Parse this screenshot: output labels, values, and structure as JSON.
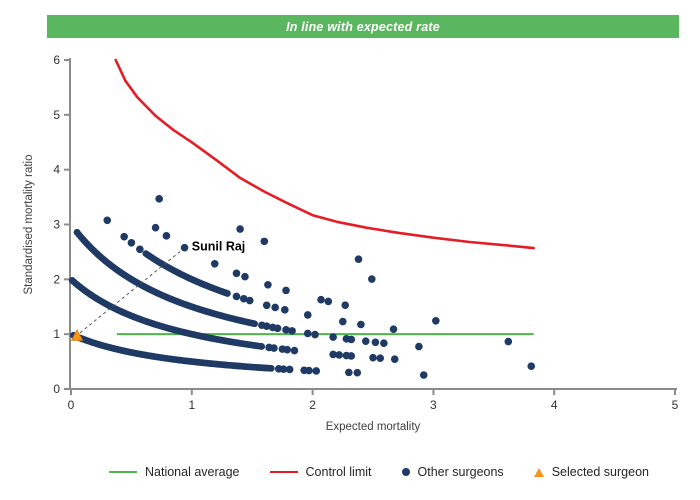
{
  "header": {
    "text": "In line with expected rate",
    "bg_color": "#5bb75f",
    "text_color": "#ffffff"
  },
  "chart_data": {
    "type": "scatter",
    "title": "",
    "xlabel": "Expected mortality",
    "ylabel": "Standardised mortality ratio",
    "xlim": [
      0,
      5
    ],
    "ylim": [
      0,
      6
    ],
    "x_ticks": [
      0,
      1,
      2,
      3,
      4,
      5
    ],
    "y_ticks": [
      0,
      1,
      2,
      3,
      4,
      5,
      6
    ],
    "grid": false,
    "point_color": "#1f3a64",
    "axis_color": "#8c8c8c",
    "tick_label_color": "#333333",
    "axis_title_color": "#404040",
    "band_formula": "smr = k / (expected + 1)  (other-surgeon points lie on hyperbolic bands, k = deaths)",
    "bands": [
      {
        "k": 1,
        "dense": [
          [
            0.02,
            1.66,
            0.014
          ]
        ],
        "extra_x": [
          1.72,
          1.76,
          1.81,
          1.93,
          1.97,
          2.03,
          2.3,
          2.37,
          2.92
        ]
      },
      {
        "k": 2,
        "dense": [
          [
            0.01,
            1.58,
            0.014
          ]
        ],
        "extra_x": [
          1.64,
          1.68,
          1.75,
          1.79,
          1.85,
          2.17,
          2.22,
          2.28,
          2.32,
          2.5,
          2.56,
          2.68,
          3.81
        ]
      },
      {
        "k": 3,
        "dense": [
          [
            0.05,
            1.52,
            0.014
          ]
        ],
        "extra_x": [
          1.58,
          1.62,
          1.67,
          1.71,
          1.78,
          1.83,
          1.96,
          2.02,
          2.17,
          2.28,
          2.32,
          2.44,
          2.52,
          2.59,
          2.88
        ]
      },
      {
        "k": 4,
        "dense": [
          [
            0.62,
            1.3,
            0.015
          ]
        ],
        "extra_x": [
          0.3,
          0.44,
          0.5,
          0.57,
          1.37,
          1.43,
          1.48,
          1.62,
          1.69,
          1.77,
          1.96,
          2.25,
          2.4,
          2.67,
          3.62
        ]
      },
      {
        "k": 5,
        "dense": [],
        "extra_x": [
          0.7,
          0.79,
          0.94,
          1.19,
          1.37,
          1.44,
          1.63,
          1.78,
          2.07,
          2.13,
          2.27,
          3.02
        ]
      },
      {
        "k": 6,
        "dense": [],
        "extra_x": [
          0.73
        ]
      },
      {
        "k": 7,
        "dense": [],
        "extra_x": [
          1.4,
          1.6,
          2.49
        ]
      },
      {
        "k": 8,
        "dense": [],
        "extra_x": [
          2.38
        ]
      }
    ],
    "control_limit": {
      "color": "#e41e26",
      "points": [
        [
          0.37,
          6.0
        ],
        [
          0.45,
          5.62
        ],
        [
          0.55,
          5.32
        ],
        [
          0.7,
          4.98
        ],
        [
          0.85,
          4.72
        ],
        [
          1.0,
          4.5
        ],
        [
          1.2,
          4.18
        ],
        [
          1.4,
          3.85
        ],
        [
          1.6,
          3.6
        ],
        [
          1.8,
          3.38
        ],
        [
          2.0,
          3.17
        ],
        [
          2.2,
          3.05
        ],
        [
          2.45,
          2.94
        ],
        [
          2.7,
          2.85
        ],
        [
          3.0,
          2.76
        ],
        [
          3.3,
          2.68
        ],
        [
          3.6,
          2.62
        ],
        [
          3.83,
          2.57
        ]
      ]
    },
    "national_average": {
      "color": "#4cb748",
      "y": 1,
      "x_start": 0.38,
      "x_end": 3.83
    },
    "selected_surgeon": {
      "x": 0.05,
      "y": 0.97,
      "color": "#f7941d",
      "label": "Sunil Raj",
      "leader_to": {
        "x": 0.94,
        "y": 2.58
      },
      "label_pos": {
        "x": 1.0,
        "y": 2.6
      }
    }
  },
  "legend": {
    "items": [
      {
        "label": "National average",
        "marker": "line",
        "color": "#4cb748"
      },
      {
        "label": "Control limit",
        "marker": "line",
        "color": "#e41e26"
      },
      {
        "label": "Other surgeons",
        "marker": "dot",
        "color": "#1f3a64"
      },
      {
        "label": "Selected surgeon",
        "marker": "triangle",
        "color": "#f7941d"
      }
    ]
  }
}
